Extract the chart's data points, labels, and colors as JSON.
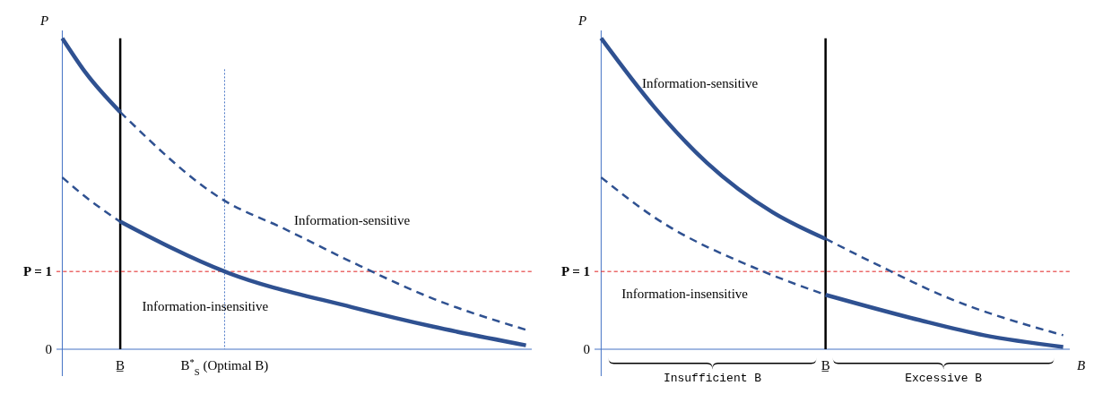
{
  "chart_data": [
    {
      "type": "line",
      "ylabel": "P",
      "ylim": [
        0,
        4.1
      ],
      "yticks": [
        0,
        {
          "value": 1,
          "label": "P = 1"
        }
      ],
      "categories": [
        null,
        null,
        null,
        null,
        null,
        "B̲",
        null,
        null,
        null,
        null,
        null,
        null,
        null,
        null,
        "B$^{*}$$_{S}$ (Optimal B)",
        null,
        null,
        null,
        null,
        null,
        null,
        null,
        null,
        null,
        null,
        null,
        null,
        null,
        null,
        null,
        null,
        null,
        null,
        null,
        null,
        null,
        null,
        null,
        null,
        null,
        null
      ],
      "series": [
        {
          "color": "#2f5191",
          "line_style": "solid",
          "values": [
            4.0,
            null,
            3.56,
            null,
            null,
            3.05,
            null,
            null,
            null,
            null,
            null,
            null,
            null,
            null,
            null,
            null,
            null,
            null,
            null,
            null,
            null,
            null,
            null,
            null,
            null,
            null,
            null,
            null,
            null,
            null,
            null,
            null,
            null,
            null,
            null,
            null,
            null,
            null,
            null,
            null,
            null
          ]
        },
        {
          "color": "#2f5191",
          "line_style": "dashed",
          "values": [
            null,
            null,
            null,
            null,
            null,
            3.05,
            null,
            null,
            null,
            null,
            null,
            null,
            null,
            null,
            1.91,
            null,
            null,
            null,
            null,
            1.56,
            null,
            null,
            null,
            null,
            null,
            1.12,
            null,
            null,
            null,
            null,
            null,
            null,
            0.65,
            null,
            null,
            null,
            null,
            null,
            null,
            null,
            0.25
          ]
        },
        {
          "color": "#2f5191",
          "line_style": "dashed",
          "values": [
            2.21,
            null,
            1.96,
            null,
            null,
            1.64,
            null,
            null,
            null,
            null,
            null,
            null,
            null,
            null,
            null,
            null,
            null,
            null,
            null,
            null,
            null,
            null,
            null,
            null,
            null,
            null,
            null,
            null,
            null,
            null,
            null,
            null,
            null,
            null,
            null,
            null,
            null,
            null,
            null,
            null,
            null
          ]
        },
        {
          "color": "#2f5191",
          "line_style": "solid",
          "values": [
            null,
            null,
            null,
            null,
            null,
            1.64,
            null,
            null,
            null,
            null,
            null,
            null,
            null,
            null,
            1.0,
            null,
            null,
            null,
            null,
            null,
            null,
            null,
            null,
            null,
            null,
            0.54,
            null,
            null,
            null,
            null,
            null,
            null,
            0.29,
            null,
            null,
            null,
            null,
            null,
            null,
            null,
            0.05
          ]
        }
      ],
      "ref_lines": [
        {
          "axis": "x",
          "value": "B̲",
          "color": "#000000",
          "line_style": "solid"
        },
        {
          "axis": "x",
          "value": "B$^{*}$$_{S}$ (Optimal B)",
          "color": "#4472c4",
          "line_style": "dotted"
        },
        {
          "axis": "y",
          "value": 1,
          "color": "#e02020",
          "line_style": "dashed"
        }
      ],
      "annotations": [
        "Information-sensitive",
        "Information-insensitive"
      ]
    },
    {
      "type": "line",
      "ylabel": "P",
      "xlabel": "B",
      "ylim": [
        0,
        4.1
      ],
      "yticks": [
        0,
        {
          "value": 1,
          "label": "P = 1"
        }
      ],
      "categories": [
        null,
        null,
        null,
        null,
        null,
        null,
        null,
        null,
        null,
        null,
        null,
        null,
        null,
        null,
        null,
        null,
        null,
        "B̲",
        null,
        null,
        null,
        null,
        null,
        null,
        null,
        null,
        null,
        null,
        null,
        null,
        null,
        null,
        null,
        null,
        null,
        null
      ],
      "series": [
        {
          "color": "#2f5191",
          "line_style": "solid",
          "values": [
            4.0,
            null,
            null,
            null,
            3.12,
            null,
            null,
            null,
            2.4,
            null,
            null,
            null,
            null,
            1.76,
            null,
            null,
            null,
            1.42,
            null,
            null,
            null,
            null,
            null,
            null,
            null,
            null,
            null,
            null,
            null,
            null,
            null,
            null,
            null,
            null,
            null,
            null
          ]
        },
        {
          "color": "#2f5191",
          "line_style": "dashed",
          "values": [
            null,
            null,
            null,
            null,
            null,
            null,
            null,
            null,
            null,
            null,
            null,
            null,
            null,
            null,
            null,
            null,
            null,
            1.42,
            null,
            null,
            null,
            1.08,
            null,
            null,
            null,
            null,
            0.68,
            null,
            null,
            null,
            null,
            null,
            null,
            null,
            null,
            0.18
          ]
        },
        {
          "color": "#2f5191",
          "line_style": "dashed",
          "values": [
            2.21,
            null,
            null,
            null,
            1.7,
            null,
            null,
            null,
            null,
            null,
            null,
            null,
            1.02,
            null,
            null,
            null,
            null,
            0.7,
            null,
            null,
            null,
            null,
            null,
            null,
            null,
            null,
            null,
            null,
            null,
            null,
            null,
            null,
            null,
            null,
            null,
            null
          ]
        },
        {
          "color": "#2f5191",
          "line_style": "solid",
          "values": [
            null,
            null,
            null,
            null,
            null,
            null,
            null,
            null,
            null,
            null,
            null,
            null,
            null,
            null,
            null,
            null,
            null,
            0.7,
            null,
            null,
            null,
            null,
            null,
            null,
            0.38,
            null,
            null,
            null,
            null,
            0.18,
            null,
            null,
            null,
            null,
            null,
            0.03
          ]
        }
      ],
      "ref_lines": [
        {
          "axis": "x",
          "value": "B̲",
          "color": "#000000",
          "line_style": "solid"
        },
        {
          "axis": "y",
          "value": 1,
          "color": "#e02020",
          "line_style": "dashed"
        }
      ],
      "annotations": [
        "Information-sensitive",
        "Information-insensitive",
        "Insufficient B",
        "Excessive B"
      ]
    }
  ]
}
